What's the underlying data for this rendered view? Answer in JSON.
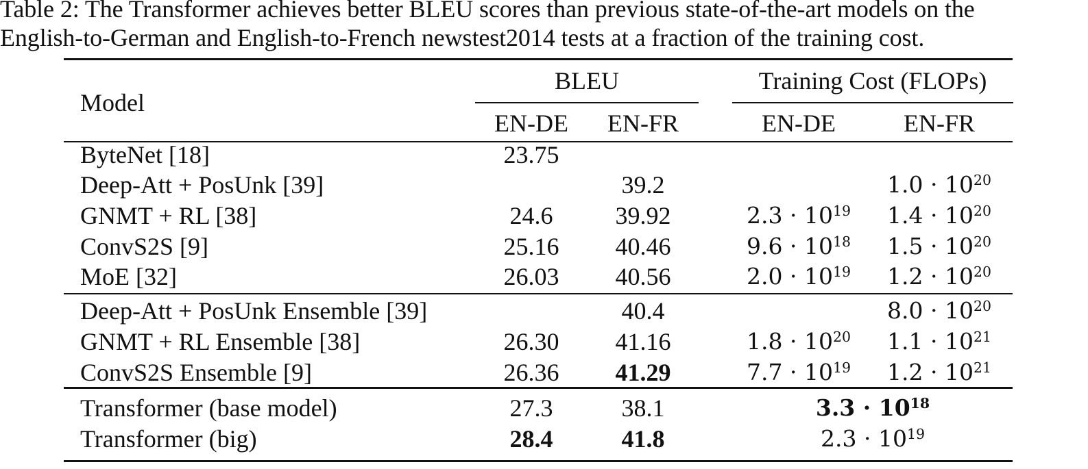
{
  "caption": {
    "line1": "Table 2: The Transformer achieves better BLEU scores than previous state-of-the-art models on the",
    "line2": "English-to-German and English-to-French newstest2014 tests at a fraction of the training cost."
  },
  "header": {
    "model": "Model",
    "bleu": "BLEU",
    "training_cost": "Training Cost (FLOPs)",
    "bleu_ende": "EN-DE",
    "bleu_enfr": "EN-FR",
    "cost_ende": "EN-DE",
    "cost_enfr": "EN-FR"
  },
  "rows": [
    {
      "model": "ByteNet [18]",
      "bleu_ende": "23.75",
      "bleu_enfr": "",
      "cost_ende": {
        "m": "",
        "e": ""
      },
      "cost_enfr": {
        "m": "",
        "e": ""
      }
    },
    {
      "model": "Deep-Att + PosUnk [39]",
      "bleu_ende": "",
      "bleu_enfr": "39.2",
      "cost_ende": {
        "m": "",
        "e": ""
      },
      "cost_enfr": {
        "m": "1.0 · 10",
        "e": "20"
      }
    },
    {
      "model": "GNMT + RL [38]",
      "bleu_ende": "24.6",
      "bleu_enfr": "39.92",
      "cost_ende": {
        "m": "2.3 · 10",
        "e": "19"
      },
      "cost_enfr": {
        "m": "1.4 · 10",
        "e": "20"
      }
    },
    {
      "model": "ConvS2S [9]",
      "bleu_ende": "25.16",
      "bleu_enfr": "40.46",
      "cost_ende": {
        "m": "9.6 · 10",
        "e": "18"
      },
      "cost_enfr": {
        "m": "1.5 · 10",
        "e": "20"
      }
    },
    {
      "model": "MoE [32]",
      "bleu_ende": "26.03",
      "bleu_enfr": "40.56",
      "cost_ende": {
        "m": "2.0 · 10",
        "e": "19"
      },
      "cost_enfr": {
        "m": "1.2 · 10",
        "e": "20"
      }
    },
    {
      "model": "Deep-Att + PosUnk Ensemble [39]",
      "bleu_ende": "",
      "bleu_enfr": "40.4",
      "cost_ende": {
        "m": "",
        "e": ""
      },
      "cost_enfr": {
        "m": "8.0 · 10",
        "e": "20"
      }
    },
    {
      "model": "GNMT + RL Ensemble [38]",
      "bleu_ende": "26.30",
      "bleu_enfr": "41.16",
      "cost_ende": {
        "m": "1.8 · 10",
        "e": "20"
      },
      "cost_enfr": {
        "m": "1.1 · 10",
        "e": "21"
      }
    },
    {
      "model": "ConvS2S Ensemble [9]",
      "bleu_ende": "26.36",
      "bleu_enfr": "41.29",
      "cost_ende": {
        "m": "7.7 · 10",
        "e": "19"
      },
      "cost_enfr": {
        "m": "1.2 · 10",
        "e": "21"
      }
    },
    {
      "model": "Transformer (base model)",
      "bleu_ende": "27.3",
      "bleu_enfr": "38.1",
      "cost_span": {
        "m": "3.3 · 10",
        "e": "18"
      }
    },
    {
      "model": "Transformer (big)",
      "bleu_ende": "28.4",
      "bleu_enfr": "41.8",
      "cost_span": {
        "m": "2.3 · 10",
        "e": "19"
      }
    }
  ]
}
